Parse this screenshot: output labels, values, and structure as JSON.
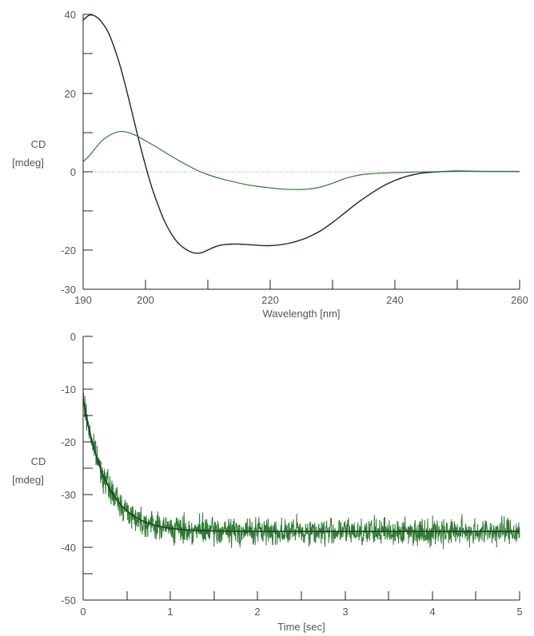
{
  "colors": {
    "axis": "#222222",
    "text": "#555555",
    "navy_series": "#1f1d5c",
    "green_series": "#2e7d32",
    "fit_line": "#1f3d2a",
    "zero_line": "#9e9e9e"
  },
  "chart_data": [
    {
      "type": "line",
      "xlabel": "Wavelength [nm]",
      "ylabel_line1": "CD",
      "ylabel_line2": "[mdeg]",
      "xlim": [
        190,
        260
      ],
      "ylim": [
        -30,
        40
      ],
      "x_tick_labels": [
        "190",
        "200",
        "220",
        "240",
        "260"
      ],
      "y_tick_labels": [
        "40",
        "20",
        "0",
        "-20",
        "-30"
      ],
      "zero_reference_line": true,
      "series": [
        {
          "color": "navy",
          "x": [
            190,
            191,
            192,
            193,
            194,
            195,
            196,
            197,
            198,
            199,
            200,
            201,
            202,
            203,
            204,
            205,
            206,
            207,
            208,
            209,
            210,
            211,
            212,
            213,
            214,
            215,
            216,
            217,
            218,
            219,
            220,
            221,
            222,
            223,
            224,
            225,
            226,
            228,
            230,
            232,
            234,
            236,
            238,
            240,
            242,
            244,
            246,
            248,
            250,
            255,
            260
          ],
          "y": [
            38.5,
            39.8,
            39.5,
            38.0,
            35.5,
            31.5,
            26.5,
            20.5,
            14.0,
            7.5,
            1.5,
            -4.0,
            -8.5,
            -12.5,
            -15.5,
            -17.8,
            -19.3,
            -20.3,
            -20.8,
            -20.7,
            -20.0,
            -19.3,
            -18.8,
            -18.6,
            -18.5,
            -18.5,
            -18.6,
            -18.7,
            -18.8,
            -18.9,
            -18.9,
            -18.8,
            -18.6,
            -18.3,
            -17.9,
            -17.4,
            -16.8,
            -15.2,
            -13.0,
            -10.5,
            -8.0,
            -5.8,
            -3.8,
            -2.3,
            -1.2,
            -0.5,
            -0.2,
            0.0,
            0.1,
            0.0,
            0.0
          ]
        },
        {
          "color": "green",
          "x": [
            190,
            191,
            192,
            193,
            194,
            195,
            196,
            197,
            198,
            199,
            200,
            202,
            204,
            206,
            208,
            210,
            212,
            214,
            216,
            218,
            220,
            222,
            224,
            226,
            228,
            230,
            232,
            234,
            236,
            240,
            245,
            250,
            255,
            260
          ],
          "y": [
            2.5,
            4.0,
            6.0,
            7.8,
            9.0,
            9.8,
            10.2,
            10.0,
            9.5,
            8.7,
            7.8,
            6.0,
            4.0,
            2.2,
            0.5,
            -0.8,
            -1.8,
            -2.6,
            -3.3,
            -3.8,
            -4.2,
            -4.5,
            -4.6,
            -4.5,
            -4.0,
            -3.0,
            -1.8,
            -1.0,
            -0.6,
            -0.3,
            -0.1,
            0.0,
            0.0,
            0.0
          ]
        }
      ]
    },
    {
      "type": "line",
      "xlabel": "Time [sec]",
      "ylabel_line1": "CD",
      "ylabel_line2": "[mdeg]",
      "xlim": [
        0,
        5
      ],
      "ylim": [
        -50,
        0
      ],
      "x_tick_labels": [
        "0",
        "1",
        "2",
        "3",
        "4",
        "5"
      ],
      "y_tick_labels": [
        "0",
        "-10",
        "-20",
        "-30",
        "-40",
        "-50"
      ],
      "noisy_data": {
        "color": "green",
        "model": "y = -37 + 25 * exp(-t / 0.27), noise amplitude approx ±3 mdeg",
        "t_start": 0,
        "t_end": 5,
        "y_start": -12,
        "y_plateau": -37,
        "tau": 0.27,
        "noise": 3.0,
        "points": 1500
      },
      "fit_line": {
        "color": "dark",
        "y_start": -12,
        "y_plateau": -37,
        "tau": 0.27
      }
    }
  ]
}
